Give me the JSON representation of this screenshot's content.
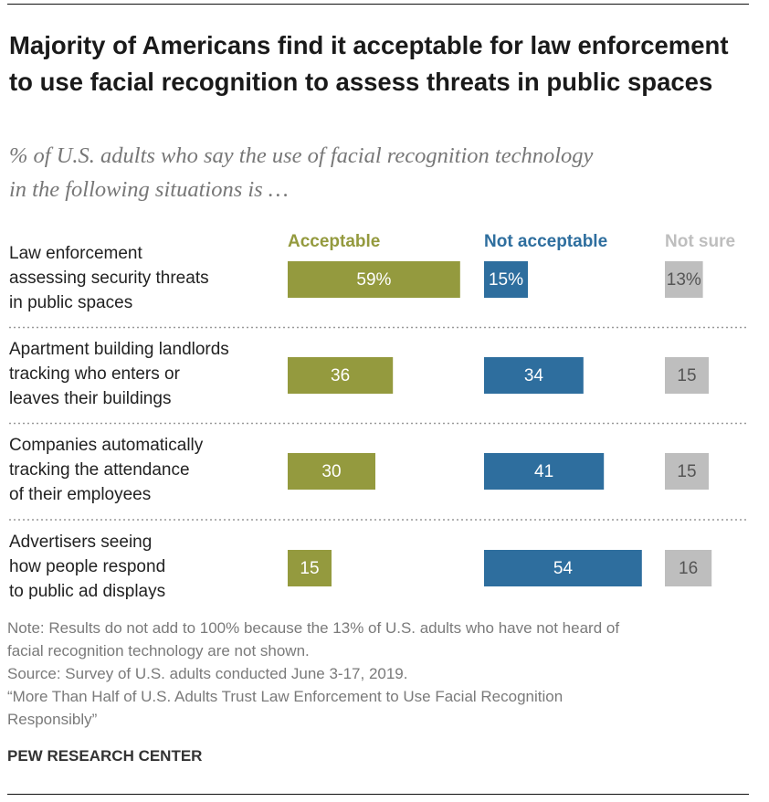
{
  "chart_data": {
    "type": "bar",
    "orientation": "horizontal",
    "title": "Majority of Americans find it acceptable for law enforcement to use facial recognition to assess threats in public spaces",
    "subtitle": "% of U.S. adults who say the use of facial recognition technology\nin the following situations is …",
    "categories": [
      "Law enforcement\nassessing security threats\nin public spaces",
      "Apartment building landlords\ntracking who enters or\nleaves their buildings",
      "Companies automatically\ntracking the attendance\nof their employees",
      "Advertisers seeing\nhow people respond\nto public ad displays"
    ],
    "series": [
      {
        "name": "Acceptable",
        "color": "#949a3e",
        "values": [
          59,
          36,
          30,
          15
        ],
        "value_labels": [
          "59%",
          "36",
          "30",
          "15"
        ]
      },
      {
        "name": "Not acceptable",
        "color": "#2e6e9e",
        "values": [
          15,
          34,
          41,
          54
        ],
        "value_labels": [
          "15%",
          "34",
          "41",
          "54"
        ]
      },
      {
        "name": "Not sure",
        "color": "#bebebe",
        "values": [
          13,
          15,
          15,
          16
        ],
        "value_labels": [
          "13%",
          "15",
          "15",
          "16"
        ]
      }
    ]
  },
  "notes": [
    "Note: Results do not add to 100% because the 13% of U.S. adults who have not heard of\nfacial recognition technology are not shown.",
    "Source: Survey of U.S. adults conducted June 3-17, 2019.",
    "“More Than Half of U.S. Adults Trust Law Enforcement to Use Facial Recognition\nResponsibly”"
  ],
  "credit": "PEW RESEARCH CENTER"
}
